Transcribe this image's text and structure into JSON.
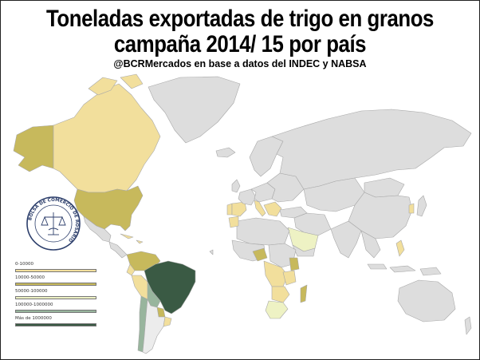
{
  "header": {
    "title_line1": "Toneladas exportadas de trigo en granos",
    "title_line2": "campaña 2014/ 15 por país",
    "subtitle": "@BCRMercados  en base a datos del INDEC y NABSA"
  },
  "seal": {
    "text": "BOLSA DE COMERCIO DE ROSARIO"
  },
  "legend": {
    "items": [
      {
        "label": "0-10000",
        "color": "#f2df9c"
      },
      {
        "label": "10000-50000",
        "color": "#c7b95c"
      },
      {
        "label": "50000-100000",
        "color": "#eef2c4"
      },
      {
        "label": "100000-1000000",
        "color": "#98b59d"
      },
      {
        "label": "Más de 1000000",
        "color": "#3a5a44"
      }
    ]
  },
  "colors": {
    "land": "#dddddd",
    "border": "#a8a8a8",
    "cat1": "#f2df9c",
    "cat2": "#c7b95c",
    "cat3": "#eef2c4",
    "cat4": "#98b59d",
    "cat5": "#3a5a44"
  }
}
